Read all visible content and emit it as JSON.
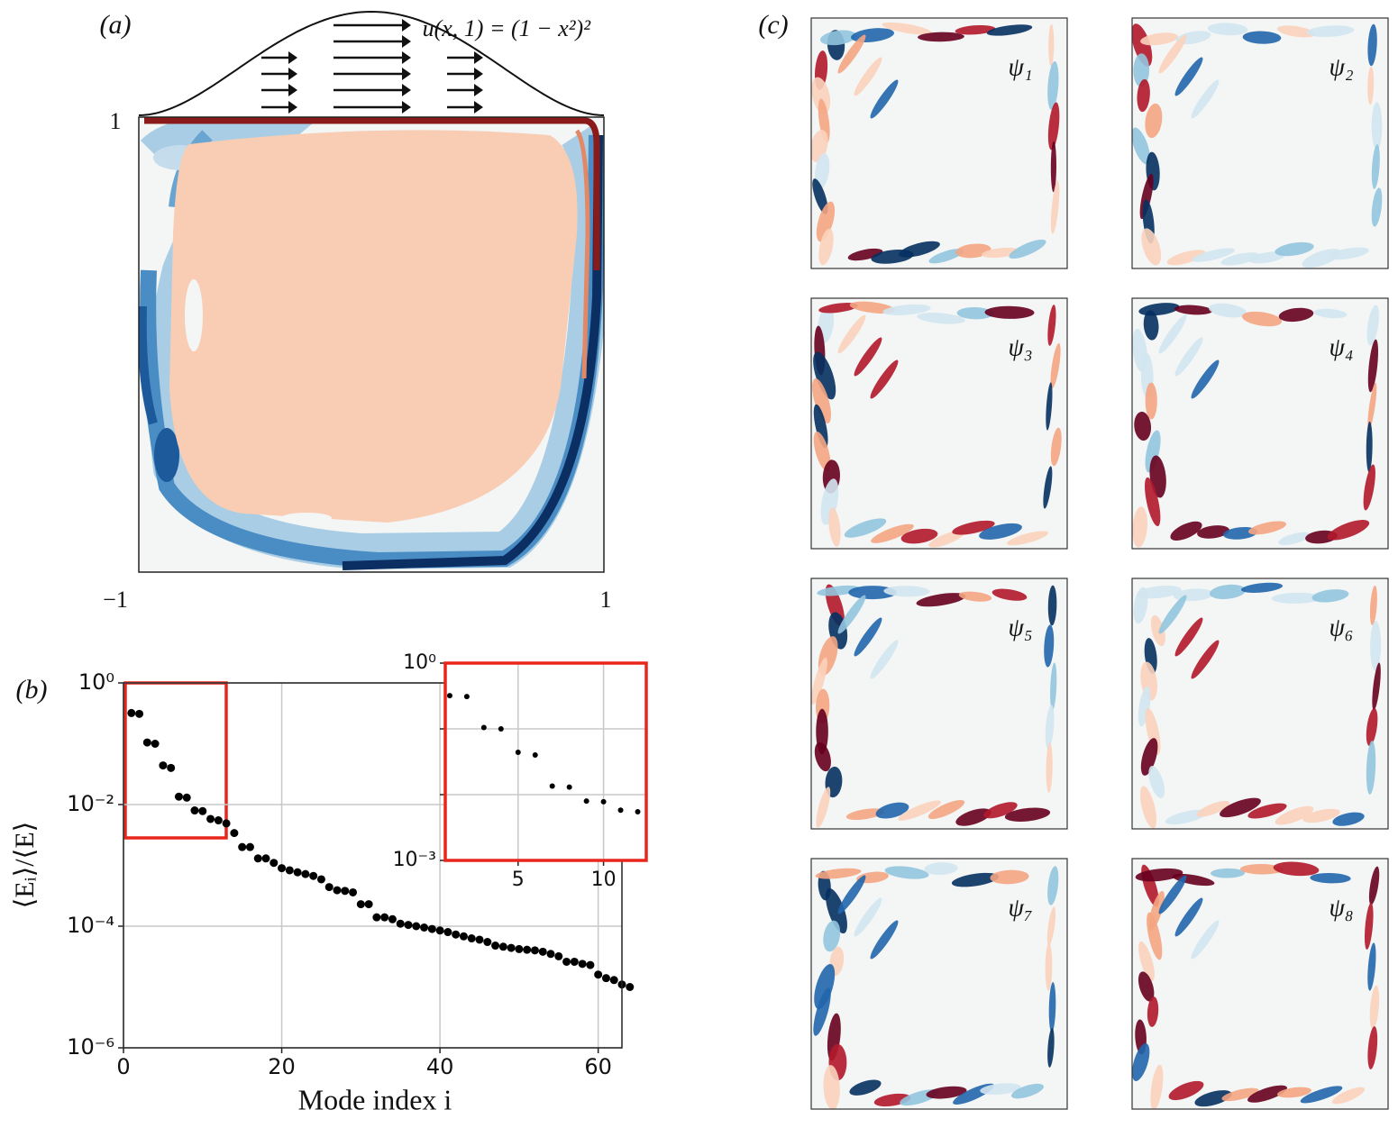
{
  "chart_data": [
    {
      "type": "contour",
      "label": "(a)",
      "annotation": "u(x, 1) = (1 − x²)²",
      "xlim": [
        -1,
        1
      ],
      "ylim": [
        -1,
        1
      ],
      "xticks": [
        {
          "value": -1,
          "label": "−1"
        },
        1
      ],
      "yticks": [
        1
      ]
    },
    {
      "type": "scatter",
      "label": "(b)",
      "xlabel": "Mode index i",
      "ylabel": "⟨Eᵢ⟩/⟨E⟩",
      "log_y": true,
      "grid": true,
      "color": "#000000",
      "x": [
        1,
        2,
        3,
        4,
        5,
        6,
        7,
        8,
        9,
        10,
        11,
        12,
        13,
        14,
        15,
        16,
        17,
        18,
        19,
        20,
        21,
        22,
        23,
        24,
        25,
        26,
        27,
        28,
        29,
        30,
        31,
        32,
        33,
        34,
        35,
        36,
        37,
        38,
        39,
        40,
        41,
        42,
        43,
        44,
        45,
        46,
        47,
        48,
        49,
        50,
        51,
        52,
        53,
        54,
        55,
        56,
        57,
        58,
        59,
        60,
        61,
        62,
        63,
        64
      ],
      "values": [
        0.32,
        0.31,
        0.105,
        0.1,
        0.044,
        0.04,
        0.0135,
        0.013,
        0.008,
        0.0078,
        0.0058,
        0.0055,
        0.0049,
        0.0034,
        0.002,
        0.002,
        0.0013,
        0.0013,
        0.0011,
        0.0009,
        0.00083,
        0.00077,
        0.00072,
        0.00067,
        0.00059,
        0.00044,
        0.00039,
        0.00038,
        0.00036,
        0.00023,
        0.00023,
        0.00014,
        0.00014,
        0.00013,
        0.00011,
        0.000105,
        0.0001,
        9.5e-05,
        9e-05,
        8.5e-05,
        8e-05,
        7.3e-05,
        6.8e-05,
        6.3e-05,
        6e-05,
        5.5e-05,
        4.8e-05,
        4.6e-05,
        4.4e-05,
        4.2e-05,
        4.1e-05,
        4e-05,
        3.8e-05,
        3.5e-05,
        3.2e-05,
        2.6e-05,
        2.6e-05,
        2.4e-05,
        2.3e-05,
        1.6e-05,
        1.4e-05,
        1.3e-05,
        1.1e-05,
        1e-05
      ],
      "xlim": [
        0,
        63
      ],
      "ylim": [
        1e-06,
        1
      ],
      "xticks": [
        0,
        20,
        40,
        60
      ],
      "yticks": [
        {
          "value": 1,
          "label": "10⁰"
        },
        {
          "value": 0.01,
          "label": "10⁻²"
        },
        {
          "value": 0.0001,
          "label": "10⁻⁴"
        },
        {
          "value": 1e-06,
          "label": "10⁻⁶"
        }
      ]
    },
    {
      "type": "scatter",
      "log_y": true,
      "grid": true,
      "color": "#000000",
      "frame_color": "#e8261c",
      "x": [
        1,
        2,
        3,
        4,
        5,
        6,
        7,
        8,
        9,
        10,
        11,
        12
      ],
      "values": [
        0.32,
        0.31,
        0.105,
        0.1,
        0.044,
        0.04,
        0.0135,
        0.013,
        0.008,
        0.0078,
        0.0058,
        0.0055
      ],
      "xlim": [
        0.74,
        12.5
      ],
      "ylim": [
        0.001,
        1
      ],
      "xticks": [
        5,
        10
      ],
      "yticks": [
        {
          "value": 1,
          "label": "10⁰"
        },
        {
          "value": 0.1,
          "label": null
        },
        {
          "value": 0.01,
          "label": null
        },
        {
          "value": 0.001,
          "label": "10⁻³"
        }
      ]
    },
    {
      "type": "modes",
      "label": "(c)",
      "labels": [
        "ψ₁",
        "ψ₂",
        "ψ₃",
        "ψ₄",
        "ψ₅",
        "ψ₆",
        "ψ₇",
        "ψ₈"
      ]
    }
  ]
}
